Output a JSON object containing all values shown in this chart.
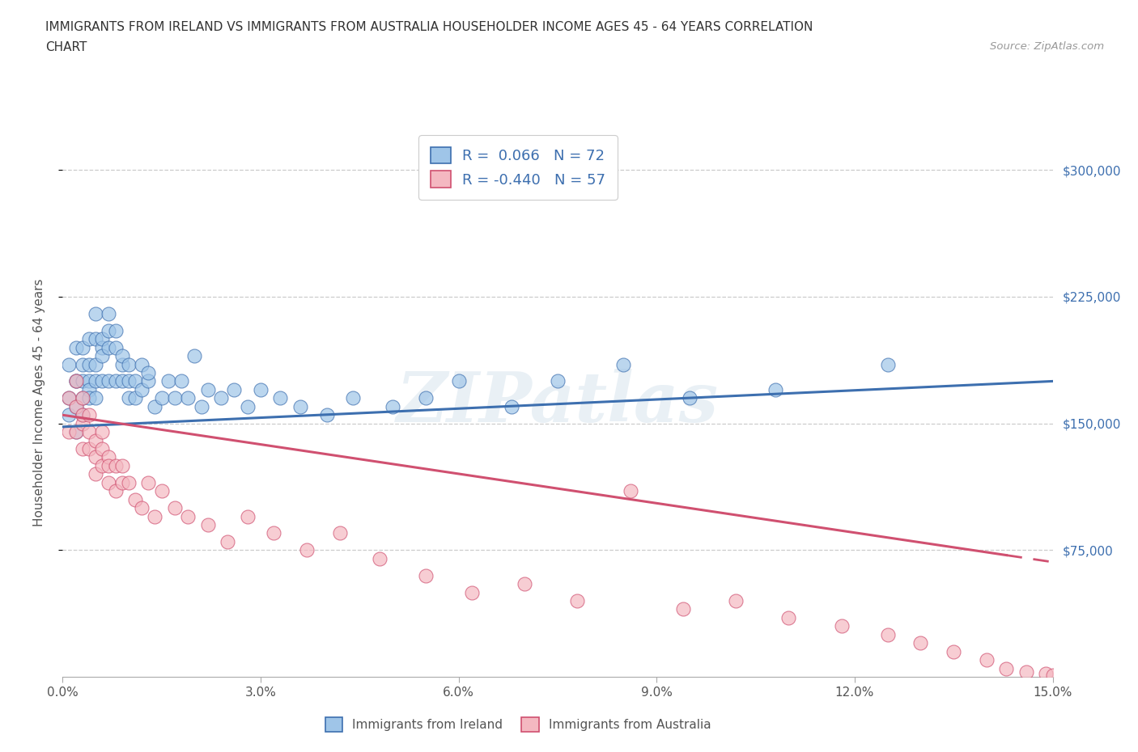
{
  "title_line1": "IMMIGRANTS FROM IRELAND VS IMMIGRANTS FROM AUSTRALIA HOUSEHOLDER INCOME AGES 45 - 64 YEARS CORRELATION",
  "title_line2": "CHART",
  "source_text": "Source: ZipAtlas.com",
  "ylabel": "Householder Income Ages 45 - 64 years",
  "xlim": [
    0.0,
    0.15
  ],
  "ylim": [
    0,
    325000
  ],
  "xticks": [
    0.0,
    0.03,
    0.06,
    0.09,
    0.12,
    0.15
  ],
  "xticklabels": [
    "0.0%",
    "3.0%",
    "6.0%",
    "9.0%",
    "12.0%",
    "15.0%"
  ],
  "yticks": [
    75000,
    150000,
    225000,
    300000
  ],
  "yticklabels": [
    "$75,000",
    "$150,000",
    "$225,000",
    "$300,000"
  ],
  "ireland_color": "#9fc5e8",
  "australia_color": "#f4b8c1",
  "ireland_line_color": "#3d6faf",
  "australia_line_color": "#d05070",
  "ireland_R": 0.066,
  "ireland_N": 72,
  "australia_R": -0.44,
  "australia_N": 57,
  "watermark": "ZIPatlas",
  "legend_label_ireland": "Immigrants from Ireland",
  "legend_label_australia": "Immigrants from Australia",
  "legend_text_color": "#3d6faf",
  "ireland_x": [
    0.001,
    0.001,
    0.001,
    0.002,
    0.002,
    0.002,
    0.002,
    0.002,
    0.003,
    0.003,
    0.003,
    0.003,
    0.003,
    0.004,
    0.004,
    0.004,
    0.004,
    0.004,
    0.005,
    0.005,
    0.005,
    0.005,
    0.005,
    0.006,
    0.006,
    0.006,
    0.006,
    0.007,
    0.007,
    0.007,
    0.007,
    0.008,
    0.008,
    0.008,
    0.009,
    0.009,
    0.009,
    0.01,
    0.01,
    0.01,
    0.011,
    0.011,
    0.012,
    0.012,
    0.013,
    0.013,
    0.014,
    0.015,
    0.016,
    0.017,
    0.018,
    0.019,
    0.02,
    0.021,
    0.022,
    0.024,
    0.026,
    0.028,
    0.03,
    0.033,
    0.036,
    0.04,
    0.044,
    0.05,
    0.055,
    0.06,
    0.068,
    0.075,
    0.085,
    0.095,
    0.108,
    0.125
  ],
  "ireland_y": [
    165000,
    185000,
    155000,
    175000,
    195000,
    145000,
    160000,
    175000,
    185000,
    165000,
    175000,
    195000,
    155000,
    200000,
    175000,
    185000,
    170000,
    165000,
    185000,
    200000,
    165000,
    175000,
    215000,
    195000,
    175000,
    200000,
    190000,
    205000,
    175000,
    215000,
    195000,
    195000,
    175000,
    205000,
    185000,
    190000,
    175000,
    175000,
    185000,
    165000,
    175000,
    165000,
    170000,
    185000,
    175000,
    180000,
    160000,
    165000,
    175000,
    165000,
    175000,
    165000,
    190000,
    160000,
    170000,
    165000,
    170000,
    160000,
    170000,
    165000,
    160000,
    155000,
    165000,
    160000,
    165000,
    175000,
    160000,
    175000,
    185000,
    165000,
    170000,
    185000
  ],
  "australia_x": [
    0.001,
    0.001,
    0.002,
    0.002,
    0.002,
    0.003,
    0.003,
    0.003,
    0.003,
    0.004,
    0.004,
    0.004,
    0.005,
    0.005,
    0.005,
    0.006,
    0.006,
    0.006,
    0.007,
    0.007,
    0.007,
    0.008,
    0.008,
    0.009,
    0.009,
    0.01,
    0.011,
    0.012,
    0.013,
    0.014,
    0.015,
    0.017,
    0.019,
    0.022,
    0.025,
    0.028,
    0.032,
    0.037,
    0.042,
    0.048,
    0.055,
    0.062,
    0.07,
    0.078,
    0.086,
    0.094,
    0.102,
    0.11,
    0.118,
    0.125,
    0.13,
    0.135,
    0.14,
    0.143,
    0.146,
    0.149,
    0.15
  ],
  "australia_y": [
    165000,
    145000,
    175000,
    145000,
    160000,
    165000,
    150000,
    135000,
    155000,
    155000,
    135000,
    145000,
    140000,
    120000,
    130000,
    125000,
    135000,
    145000,
    115000,
    130000,
    125000,
    110000,
    125000,
    115000,
    125000,
    115000,
    105000,
    100000,
    115000,
    95000,
    110000,
    100000,
    95000,
    90000,
    80000,
    95000,
    85000,
    75000,
    85000,
    70000,
    60000,
    50000,
    55000,
    45000,
    110000,
    40000,
    45000,
    35000,
    30000,
    25000,
    20000,
    15000,
    10000,
    5000,
    3000,
    2000,
    1000
  ]
}
